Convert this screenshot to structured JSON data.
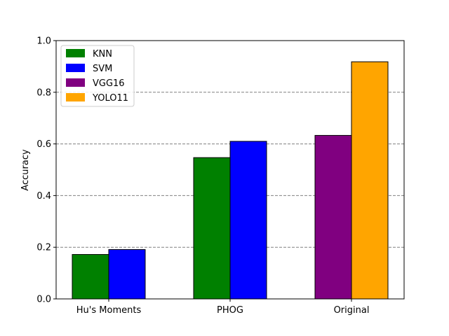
{
  "chart_data": {
    "type": "bar",
    "categories": [
      "Hu's Moments",
      "PHOG",
      "Original"
    ],
    "xlabel": "",
    "ylabel": "Accuracy",
    "ylim": [
      0,
      1.0
    ],
    "yticks": [
      "0.0",
      "0.2",
      "0.4",
      "0.6",
      "0.8",
      "1.0"
    ],
    "grid": "y-dashed",
    "legend_position": "top-left",
    "series": [
      {
        "name": "KNN",
        "color": "#008000",
        "values": [
          0.172,
          0.547,
          null
        ]
      },
      {
        "name": "SVM",
        "color": "#0000ff",
        "values": [
          0.191,
          0.61,
          null
        ]
      },
      {
        "name": "VGG16",
        "color": "#800080",
        "values": [
          null,
          null,
          0.633
        ]
      },
      {
        "name": "YOLO11",
        "color": "#ffa500",
        "values": [
          null,
          null,
          0.918
        ]
      }
    ],
    "bar_groups": [
      [
        "KNN",
        "SVM"
      ],
      [
        "KNN",
        "SVM"
      ],
      [
        "VGG16",
        "YOLO11"
      ]
    ]
  }
}
